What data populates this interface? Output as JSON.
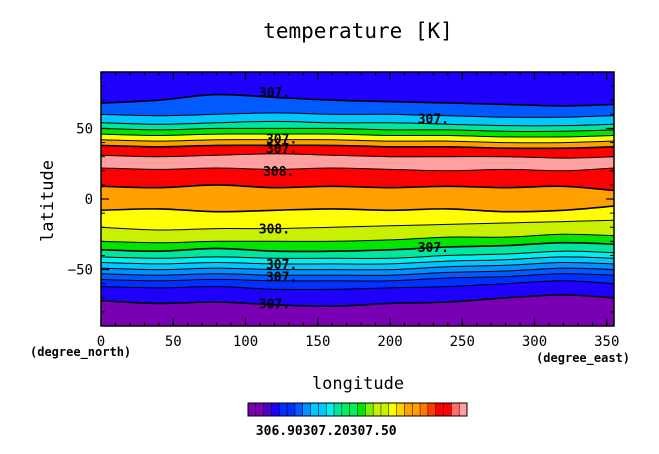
{
  "chart_data": {
    "type": "heatmap",
    "subtype": "filled-contour",
    "title": "temperature [K]",
    "xlabel": "longitude",
    "ylabel": "latitude",
    "x_unit": "(degree_east)",
    "y_unit": "(degree_north)",
    "xlim": [
      0,
      355
    ],
    "ylim": [
      -90,
      90
    ],
    "xticks": [
      0,
      50,
      100,
      150,
      200,
      250,
      300,
      350
    ],
    "yticks": [
      -50,
      0,
      50
    ],
    "contour_levels": [
      306.7,
      306.75,
      306.8,
      306.85,
      306.9,
      306.95,
      307.0,
      307.05,
      307.1,
      307.15,
      307.2,
      307.25,
      307.3,
      307.35,
      307.4,
      307.45,
      307.5,
      307.55,
      307.6,
      307.65,
      307.7,
      307.75,
      307.8,
      307.85,
      307.9,
      307.95,
      308.0,
      308.05
    ],
    "colorbar_labels": [
      "306.90",
      "307.20",
      "307.50"
    ],
    "colormap": [
      "#7a00b4",
      "#4b00c8",
      "#1f00ff",
      "#0030ff",
      "#005aff",
      "#0090ff",
      "#00c8ff",
      "#00f0f0",
      "#00e6a0",
      "#00f060",
      "#00e600",
      "#80f000",
      "#c8f000",
      "#ffff00",
      "#ffd200",
      "#ffa000",
      "#ff7800",
      "#ff3c00",
      "#ff0000",
      "#ff6e6e",
      "#ffa0a0"
    ],
    "band_boundaries_by_longitude": {
      "lon": [
        0,
        40,
        80,
        120,
        160,
        200,
        240,
        280,
        320,
        355
      ],
      "bounds": [
        [
          -90,
          -90,
          -90,
          -90,
          -90,
          -90,
          -90,
          -90,
          -90,
          -90
        ],
        [
          -72,
          -74,
          -73,
          -75,
          -76,
          -74,
          -73,
          -70,
          -68,
          -70
        ],
        [
          -62,
          -63,
          -62,
          -64,
          -64,
          -63,
          -62,
          -60,
          -58,
          -60
        ],
        [
          -57,
          -58,
          -57,
          -58,
          -58,
          -58,
          -56,
          -55,
          -53,
          -54
        ],
        [
          -53,
          -54,
          -53,
          -54,
          -54,
          -54,
          -52,
          -51,
          -49,
          -50
        ],
        [
          -49,
          -50,
          -49,
          -50,
          -50,
          -50,
          -48,
          -47,
          -45,
          -46
        ],
        [
          -45,
          -46,
          -45,
          -46,
          -46,
          -46,
          -44,
          -43,
          -41,
          -42
        ],
        [
          -41,
          -42,
          -41,
          -42,
          -42,
          -42,
          -40,
          -39,
          -37,
          -38
        ],
        [
          -36,
          -37,
          -35,
          -37,
          -37,
          -36,
          -34,
          -33,
          -31,
          -32
        ],
        [
          -30,
          -31,
          -30,
          -30,
          -30,
          -29,
          -27,
          -27,
          -25,
          -26
        ],
        [
          -20,
          -22,
          -21,
          -21,
          -20,
          -19,
          -18,
          -17,
          -16,
          -15
        ],
        [
          -8,
          -7,
          -9,
          -8,
          -7,
          -8,
          -7,
          -9,
          -8,
          -5
        ],
        [
          9,
          8,
          10,
          8,
          9,
          8,
          9,
          8,
          9,
          6
        ],
        [
          22,
          21,
          22,
          21,
          22,
          21,
          20,
          21,
          20,
          22
        ],
        [
          31,
          30,
          31,
          32,
          31,
          30,
          30,
          30,
          29,
          30
        ],
        [
          38,
          37,
          38,
          38,
          38,
          37,
          37,
          36,
          36,
          37
        ],
        [
          42,
          41,
          42,
          42,
          42,
          41,
          41,
          40,
          40,
          41
        ],
        [
          46,
          45,
          46,
          46,
          46,
          45,
          45,
          44,
          44,
          45
        ],
        [
          50,
          49,
          50,
          50,
          50,
          49,
          49,
          48,
          48,
          49
        ],
        [
          54,
          53,
          54,
          55,
          54,
          54,
          53,
          52,
          52,
          53
        ],
        [
          60,
          59,
          60,
          61,
          60,
          60,
          59,
          58,
          58,
          59
        ],
        [
          68,
          70,
          74,
          72,
          70,
          69,
          68,
          67,
          66,
          67
        ],
        [
          90,
          90,
          90,
          90,
          90,
          90,
          90,
          90,
          90,
          90
        ]
      ],
      "band_colors": [
        "#7a00b4",
        "#1f00ff",
        "#0030ff",
        "#005aff",
        "#0090ff",
        "#00c8ff",
        "#00f0f0",
        "#00e6a0",
        "#00e600",
        "#c8f000",
        "#ffff00",
        "#ffa000",
        "#ff0000",
        "#ffa0a0",
        "#ff0000",
        "#ffa000",
        "#ffff00",
        "#00e600",
        "#00e6a0",
        "#00c8ff",
        "#005aff",
        "#1f00ff",
        "#7a00b4"
      ]
    },
    "contour_labels": [
      {
        "text": "307.",
        "lon": 120,
        "lat": 76
      },
      {
        "text": "307.",
        "lon": 230,
        "lat": 57
      },
      {
        "text": "307.",
        "lon": 125,
        "lat": 43
      },
      {
        "text": "307.",
        "lon": 125,
        "lat": 36
      },
      {
        "text": "308.",
        "lon": 123,
        "lat": 20
      },
      {
        "text": "308.",
        "lon": 120,
        "lat": -21
      },
      {
        "text": "307.",
        "lon": 230,
        "lat": -34
      },
      {
        "text": "307.",
        "lon": 125,
        "lat": -46
      },
      {
        "text": "307.",
        "lon": 125,
        "lat": -55
      },
      {
        "text": "307.",
        "lon": 120,
        "lat": -74
      }
    ]
  }
}
